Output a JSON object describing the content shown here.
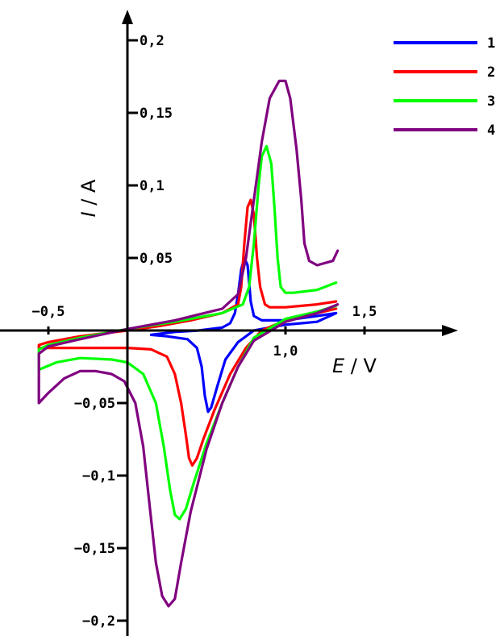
{
  "chart_data": {
    "type": "line",
    "title": "",
    "xlabel": {
      "symbol": "E",
      "unit": "V"
    },
    "ylabel": {
      "symbol": "I",
      "unit": "A"
    },
    "xlim": [
      -0.55,
      2.1
    ],
    "ylim": [
      -0.205,
      0.205
    ],
    "x_ticks": [
      {
        "value": -0.5,
        "label": "−0,5",
        "side": "above"
      },
      {
        "value": 1.0,
        "label": "1,0",
        "side": "below"
      },
      {
        "value": 1.5,
        "label": "1,5",
        "side": "above"
      }
    ],
    "y_ticks": [
      {
        "value": 0.2,
        "label": "0,2",
        "side": "right"
      },
      {
        "value": 0.15,
        "label": "0,15",
        "side": "right"
      },
      {
        "value": 0.1,
        "label": "0,1",
        "side": "right"
      },
      {
        "value": 0.05,
        "label": "0,05",
        "side": "right"
      },
      {
        "value": -0.05,
        "label": "−0,05",
        "side": "left"
      },
      {
        "value": -0.1,
        "label": "−0,1",
        "side": "left"
      },
      {
        "value": -0.15,
        "label": "−0,15",
        "side": "left"
      },
      {
        "value": -0.2,
        "label": "−0,2",
        "side": "left"
      }
    ],
    "legend_position": "top-right",
    "grid": false,
    "series": [
      {
        "name": "1",
        "color": "#0000ff",
        "points": [
          [
            0.15,
            -0.003
          ],
          [
            0.3,
            -0.001
          ],
          [
            0.45,
            0.0
          ],
          [
            0.6,
            0.002
          ],
          [
            0.65,
            0.005
          ],
          [
            0.68,
            0.012
          ],
          [
            0.7,
            0.025
          ],
          [
            0.72,
            0.042
          ],
          [
            0.74,
            0.05
          ],
          [
            0.76,
            0.045
          ],
          [
            0.77,
            0.033
          ],
          [
            0.78,
            0.02
          ],
          [
            0.8,
            0.01
          ],
          [
            0.85,
            0.007
          ],
          [
            1.0,
            0.007
          ],
          [
            1.2,
            0.01
          ],
          [
            1.32,
            0.012
          ],
          [
            1.2,
            0.006
          ],
          [
            1.0,
            0.004
          ],
          [
            0.8,
            0.0
          ],
          [
            0.7,
            -0.008
          ],
          [
            0.62,
            -0.02
          ],
          [
            0.57,
            -0.038
          ],
          [
            0.53,
            -0.053
          ],
          [
            0.51,
            -0.056
          ],
          [
            0.49,
            -0.045
          ],
          [
            0.47,
            -0.025
          ],
          [
            0.44,
            -0.012
          ],
          [
            0.38,
            -0.006
          ],
          [
            0.25,
            -0.004
          ],
          [
            0.15,
            -0.003
          ]
        ]
      },
      {
        "name": "2",
        "color": "#ff0000",
        "points": [
          [
            1.32,
            0.02
          ],
          [
            1.2,
            0.018
          ],
          [
            1.0,
            0.016
          ],
          [
            0.9,
            0.016
          ],
          [
            0.87,
            0.018
          ],
          [
            0.84,
            0.03
          ],
          [
            0.82,
            0.05
          ],
          [
            0.8,
            0.08
          ],
          [
            0.78,
            0.09
          ],
          [
            0.76,
            0.085
          ],
          [
            0.74,
            0.06
          ],
          [
            0.72,
            0.03
          ],
          [
            0.7,
            0.018
          ],
          [
            0.6,
            0.012
          ],
          [
            0.4,
            0.007
          ],
          [
            0.2,
            0.003
          ],
          [
            0.0,
            0.0
          ],
          [
            -0.3,
            -0.004
          ],
          [
            -0.5,
            -0.008
          ],
          [
            -0.56,
            -0.01
          ],
          [
            -0.56,
            -0.012
          ],
          [
            -0.3,
            -0.012
          ],
          [
            0.0,
            -0.012
          ],
          [
            0.15,
            -0.013
          ],
          [
            0.25,
            -0.018
          ],
          [
            0.3,
            -0.03
          ],
          [
            0.34,
            -0.05
          ],
          [
            0.37,
            -0.072
          ],
          [
            0.39,
            -0.088
          ],
          [
            0.41,
            -0.093
          ],
          [
            0.44,
            -0.088
          ],
          [
            0.48,
            -0.075
          ],
          [
            0.55,
            -0.055
          ],
          [
            0.65,
            -0.03
          ],
          [
            0.75,
            -0.012
          ],
          [
            0.85,
            0.0
          ],
          [
            1.0,
            0.007
          ],
          [
            1.2,
            0.012
          ],
          [
            1.32,
            0.015
          ]
        ]
      },
      {
        "name": "3",
        "color": "#00ff00",
        "points": [
          [
            1.32,
            0.033
          ],
          [
            1.2,
            0.028
          ],
          [
            1.05,
            0.026
          ],
          [
            1.0,
            0.026
          ],
          [
            0.97,
            0.03
          ],
          [
            0.95,
            0.05
          ],
          [
            0.93,
            0.085
          ],
          [
            0.91,
            0.115
          ],
          [
            0.88,
            0.127
          ],
          [
            0.85,
            0.12
          ],
          [
            0.83,
            0.1
          ],
          [
            0.8,
            0.06
          ],
          [
            0.77,
            0.03
          ],
          [
            0.73,
            0.018
          ],
          [
            0.6,
            0.012
          ],
          [
            0.3,
            0.006
          ],
          [
            0.0,
            0.001
          ],
          [
            -0.3,
            -0.005
          ],
          [
            -0.5,
            -0.01
          ],
          [
            -0.56,
            -0.013
          ],
          [
            -0.56,
            -0.027
          ],
          [
            -0.45,
            -0.022
          ],
          [
            -0.3,
            -0.019
          ],
          [
            -0.1,
            -0.02
          ],
          [
            0.0,
            -0.022
          ],
          [
            0.1,
            -0.03
          ],
          [
            0.18,
            -0.05
          ],
          [
            0.23,
            -0.08
          ],
          [
            0.27,
            -0.11
          ],
          [
            0.3,
            -0.127
          ],
          [
            0.33,
            -0.13
          ],
          [
            0.37,
            -0.123
          ],
          [
            0.42,
            -0.105
          ],
          [
            0.5,
            -0.078
          ],
          [
            0.6,
            -0.05
          ],
          [
            0.7,
            -0.025
          ],
          [
            0.8,
            -0.005
          ],
          [
            1.0,
            0.008
          ],
          [
            1.2,
            0.013
          ],
          [
            1.32,
            0.017
          ]
        ]
      },
      {
        "name": "4",
        "color": "#800080",
        "points": [
          [
            1.33,
            0.055
          ],
          [
            1.3,
            0.048
          ],
          [
            1.2,
            0.045
          ],
          [
            1.15,
            0.048
          ],
          [
            1.12,
            0.06
          ],
          [
            1.1,
            0.09
          ],
          [
            1.07,
            0.125
          ],
          [
            1.03,
            0.16
          ],
          [
            1.0,
            0.172
          ],
          [
            0.96,
            0.172
          ],
          [
            0.9,
            0.16
          ],
          [
            0.85,
            0.13
          ],
          [
            0.8,
            0.09
          ],
          [
            0.75,
            0.05
          ],
          [
            0.7,
            0.025
          ],
          [
            0.6,
            0.015
          ],
          [
            0.3,
            0.007
          ],
          [
            0.0,
            0.001
          ],
          [
            -0.3,
            -0.006
          ],
          [
            -0.5,
            -0.011
          ],
          [
            -0.56,
            -0.016
          ],
          [
            -0.56,
            -0.05
          ],
          [
            -0.5,
            -0.043
          ],
          [
            -0.4,
            -0.033
          ],
          [
            -0.3,
            -0.028
          ],
          [
            -0.2,
            -0.028
          ],
          [
            -0.1,
            -0.03
          ],
          [
            -0.02,
            -0.035
          ],
          [
            0.05,
            -0.05
          ],
          [
            0.1,
            -0.08
          ],
          [
            0.14,
            -0.12
          ],
          [
            0.18,
            -0.16
          ],
          [
            0.22,
            -0.183
          ],
          [
            0.26,
            -0.19
          ],
          [
            0.3,
            -0.185
          ],
          [
            0.34,
            -0.16
          ],
          [
            0.4,
            -0.125
          ],
          [
            0.5,
            -0.082
          ],
          [
            0.6,
            -0.05
          ],
          [
            0.7,
            -0.025
          ],
          [
            0.8,
            -0.007
          ],
          [
            1.0,
            0.006
          ],
          [
            1.2,
            0.012
          ],
          [
            1.33,
            0.018
          ]
        ]
      }
    ]
  }
}
